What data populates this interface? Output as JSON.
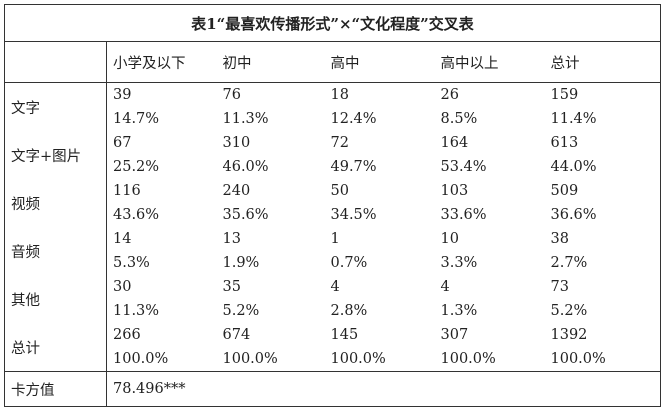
{
  "table": {
    "title": "表1“最喜欢传播形式”×“文化程度”交叉表",
    "columns": [
      "小学及以下",
      "初中",
      "高中",
      "高中以上",
      "总计"
    ],
    "rows": [
      {
        "label": "文字",
        "counts": [
          "39",
          "76",
          "18",
          "26",
          "159"
        ],
        "percents": [
          "14.7%",
          "11.3%",
          "12.4%",
          "8.5%",
          "11.4%"
        ]
      },
      {
        "label": "文字+图片",
        "counts": [
          "67",
          "310",
          "72",
          "164",
          "613"
        ],
        "percents": [
          "25.2%",
          "46.0%",
          "49.7%",
          "53.4%",
          "44.0%"
        ]
      },
      {
        "label": "视频",
        "counts": [
          "116",
          "240",
          "50",
          "103",
          "509"
        ],
        "percents": [
          "43.6%",
          "35.6%",
          "34.5%",
          "33.6%",
          "36.6%"
        ]
      },
      {
        "label": "音频",
        "counts": [
          "14",
          "13",
          "1",
          "10",
          "38"
        ],
        "percents": [
          "5.3%",
          "1.9%",
          "0.7%",
          "3.3%",
          "2.7%"
        ]
      },
      {
        "label": "其他",
        "counts": [
          "30",
          "35",
          "4",
          "4",
          "73"
        ],
        "percents": [
          "11.3%",
          "5.2%",
          "2.8%",
          "1.3%",
          "5.2%"
        ]
      },
      {
        "label": "总计",
        "counts": [
          "266",
          "674",
          "145",
          "307",
          "1392"
        ],
        "percents": [
          "100.0%",
          "100.0%",
          "100.0%",
          "100.0%",
          "100.0%"
        ]
      }
    ],
    "chi_square": {
      "label": "卡方值",
      "value": "78.496***"
    }
  }
}
